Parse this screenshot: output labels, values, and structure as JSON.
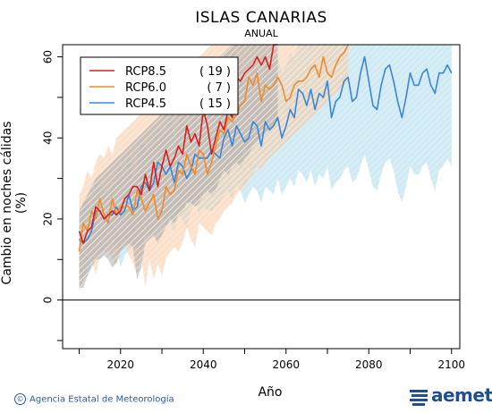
{
  "header": {
    "title": "ISLAS CANARIAS",
    "subtitle": "ANUAL"
  },
  "footer": {
    "credit": "Agencia Estatal de Meteorología",
    "logo_text": "aemet"
  },
  "chart_data": {
    "type": "line",
    "title": "ISLAS CANARIAS",
    "subtitle": "ANUAL",
    "xlabel": "Año",
    "ylabel": "Cambio en noches cálidas (%)",
    "xlim": [
      2006,
      2102
    ],
    "ylim": [
      -12,
      63
    ],
    "xticks": [
      2020,
      2040,
      2060,
      2080,
      2100
    ],
    "yticks": [
      0,
      20,
      40,
      60
    ],
    "reference_line": 0,
    "legend_position": "top-left",
    "series": [
      {
        "name": "RCP8.5",
        "count": "( 19 )",
        "color": "#d62020",
        "band_color": "#a8a8a8",
        "x": [
          2010,
          2011,
          2012,
          2013,
          2014,
          2015,
          2016,
          2017,
          2018,
          2019,
          2020,
          2021,
          2022,
          2023,
          2024,
          2025,
          2026,
          2027,
          2028,
          2029,
          2030,
          2031,
          2032,
          2033,
          2034,
          2035,
          2036,
          2037,
          2038,
          2039,
          2040,
          2041,
          2042,
          2043,
          2044,
          2045,
          2046,
          2047,
          2048,
          2049,
          2050,
          2051,
          2052,
          2053,
          2054,
          2055,
          2056,
          2057,
          2058
        ],
        "values": [
          17,
          14,
          17,
          18,
          23,
          22,
          20,
          21,
          22,
          21,
          22,
          25,
          26,
          28,
          28,
          26,
          31,
          27,
          34,
          28,
          33,
          37,
          33,
          35,
          38,
          36,
          43,
          39,
          41,
          38,
          47,
          43,
          36,
          40,
          44,
          42,
          47,
          45,
          55,
          54,
          56,
          57,
          58,
          60,
          58,
          60,
          57,
          63,
          64
        ],
        "upper": [
          22,
          24,
          26,
          28,
          30,
          31,
          32,
          33,
          34,
          35,
          36,
          37,
          38,
          39,
          40,
          41,
          42,
          43,
          44,
          45,
          46,
          47,
          48,
          49,
          50,
          51,
          52,
          53,
          54,
          55,
          56,
          57,
          58,
          59,
          60,
          61,
          62,
          63,
          63,
          63,
          63,
          63,
          63,
          63,
          63,
          63,
          63,
          63,
          63
        ],
        "lower": [
          3,
          3,
          6,
          8,
          10,
          10,
          11,
          10,
          8,
          9,
          12,
          13,
          14,
          13,
          5,
          8,
          14,
          15,
          16,
          14,
          16,
          18,
          20,
          19,
          21,
          22,
          24,
          24,
          23,
          24,
          26,
          27,
          26,
          27,
          30,
          32,
          31,
          33,
          34,
          33,
          35,
          36,
          38,
          39,
          40,
          41,
          42,
          43,
          44
        ]
      },
      {
        "name": "RCP6.0",
        "count": "(  7 )",
        "color": "#f08a2a",
        "band_color": "#f7c9a0",
        "x": [
          2010,
          2011,
          2012,
          2013,
          2014,
          2015,
          2016,
          2017,
          2018,
          2019,
          2020,
          2021,
          2022,
          2023,
          2024,
          2025,
          2026,
          2027,
          2028,
          2029,
          2030,
          2031,
          2032,
          2033,
          2034,
          2035,
          2036,
          2037,
          2038,
          2039,
          2040,
          2041,
          2042,
          2043,
          2044,
          2045,
          2046,
          2047,
          2048,
          2049,
          2050,
          2051,
          2052,
          2053,
          2054,
          2055,
          2056,
          2057,
          2058,
          2059,
          2060,
          2061,
          2062,
          2063,
          2064,
          2065,
          2066,
          2067,
          2068,
          2069,
          2070,
          2071,
          2072,
          2073,
          2074,
          2075
        ],
        "values": [
          12,
          19,
          17,
          22,
          20,
          25,
          21,
          19,
          25,
          21,
          23,
          23,
          23,
          21,
          27,
          25,
          22,
          24,
          26,
          20,
          22,
          28,
          26,
          27,
          32,
          31,
          36,
          33,
          31,
          37,
          36,
          31,
          34,
          38,
          42,
          41,
          45,
          44,
          46,
          48,
          49,
          55,
          53,
          56,
          49,
          53,
          52,
          53,
          55,
          53,
          49,
          50,
          53,
          54,
          54,
          55,
          57,
          58,
          55,
          60,
          56,
          55,
          58,
          60,
          61,
          63
        ],
        "upper": [
          26,
          28,
          32,
          30,
          34,
          36,
          35,
          38,
          36,
          40,
          41,
          42,
          43,
          44,
          45,
          46,
          47,
          48,
          49,
          50,
          51,
          52,
          53,
          54,
          55,
          56,
          57,
          58,
          59,
          60,
          61,
          62,
          63,
          63,
          63,
          63,
          63,
          63,
          63,
          63,
          63,
          63,
          63,
          63,
          63,
          63,
          63,
          63,
          63,
          63,
          63,
          63,
          63,
          63,
          63,
          63,
          63,
          63,
          63,
          63,
          63,
          63,
          63,
          63,
          63,
          63
        ],
        "lower": [
          2,
          5,
          8,
          10,
          6,
          11,
          12,
          12,
          10,
          9,
          12,
          14,
          11,
          9,
          6,
          11,
          3,
          10,
          5,
          9,
          6,
          10,
          12,
          13,
          12,
          14,
          18,
          15,
          13,
          19,
          18,
          17,
          16,
          19,
          20,
          22,
          23,
          24,
          26,
          27,
          28,
          30,
          31,
          33,
          32,
          34,
          35,
          36,
          37,
          38,
          39,
          40,
          41,
          42,
          43,
          44,
          45,
          46,
          47,
          48,
          49,
          50,
          51,
          52,
          53,
          54
        ]
      },
      {
        "name": "RCP4.5",
        "count": "( 15 )",
        "color": "#3a86d8",
        "band_color": "#a9d9ea",
        "x": [
          2010,
          2011,
          2012,
          2013,
          2014,
          2015,
          2016,
          2017,
          2018,
          2019,
          2020,
          2021,
          2022,
          2023,
          2024,
          2025,
          2026,
          2027,
          2028,
          2029,
          2030,
          2031,
          2032,
          2033,
          2034,
          2035,
          2036,
          2037,
          2038,
          2039,
          2040,
          2041,
          2042,
          2043,
          2044,
          2045,
          2046,
          2047,
          2048,
          2049,
          2050,
          2051,
          2052,
          2053,
          2054,
          2055,
          2056,
          2057,
          2058,
          2059,
          2060,
          2061,
          2062,
          2063,
          2064,
          2065,
          2066,
          2067,
          2068,
          2069,
          2070,
          2071,
          2072,
          2073,
          2074,
          2075,
          2076,
          2077,
          2078,
          2079,
          2080,
          2081,
          2082,
          2083,
          2084,
          2085,
          2086,
          2087,
          2088,
          2089,
          2090,
          2091,
          2092,
          2093,
          2094,
          2095,
          2096,
          2097,
          2098,
          2099,
          2100
        ],
        "values": [
          15,
          14,
          15,
          17,
          22,
          22,
          20,
          21,
          21,
          23,
          21,
          22,
          26,
          22,
          23,
          28,
          29,
          27,
          29,
          34,
          33,
          31,
          33,
          29,
          34,
          33,
          30,
          32,
          36,
          35,
          35,
          35,
          37,
          36,
          35,
          40,
          42,
          38,
          43,
          41,
          39,
          40,
          44,
          43,
          38,
          44,
          42,
          43,
          45,
          40,
          43,
          47,
          45,
          52,
          51,
          48,
          52,
          47,
          51,
          50,
          54,
          45,
          49,
          50,
          54,
          55,
          49,
          50,
          56,
          60,
          54,
          48,
          47,
          53,
          57,
          58,
          54,
          49,
          45,
          50,
          56,
          53,
          53,
          56,
          57,
          53,
          51,
          56,
          56,
          58,
          56
        ],
        "upper": [
          19,
          24,
          25,
          23,
          30,
          28,
          27,
          26,
          28,
          31,
          33,
          30,
          37,
          29,
          33,
          40,
          37,
          38,
          39,
          43,
          41,
          42,
          45,
          40,
          44,
          45,
          43,
          44,
          48,
          46,
          48,
          49,
          50,
          49,
          50,
          52,
          55,
          51,
          56,
          55,
          53,
          54,
          58,
          57,
          53,
          58,
          58,
          59,
          60,
          56,
          58,
          61,
          60,
          63,
          63,
          63,
          63,
          63,
          63,
          63,
          63,
          63,
          63,
          63,
          63,
          63,
          63,
          63,
          63,
          63,
          63,
          63,
          63,
          63,
          63,
          63,
          63,
          63,
          63,
          63,
          63,
          63,
          63,
          63,
          63,
          63,
          63,
          63,
          63,
          63,
          63
        ],
        "lower": [
          4,
          5,
          6,
          9,
          12,
          11,
          12,
          13,
          14,
          13,
          8,
          11,
          12,
          14,
          13,
          13,
          16,
          15,
          16,
          18,
          20,
          18,
          19,
          17,
          21,
          20,
          18,
          22,
          24,
          21,
          23,
          22,
          22,
          23,
          24,
          26,
          27,
          25,
          28,
          27,
          24,
          26,
          28,
          27,
          24,
          28,
          27,
          26,
          30,
          26,
          28,
          30,
          28,
          32,
          31,
          29,
          32,
          28,
          31,
          30,
          33,
          27,
          29,
          30,
          32,
          33,
          29,
          30,
          33,
          36,
          32,
          28,
          27,
          31,
          34,
          35,
          32,
          27,
          24,
          28,
          33,
          31,
          31,
          33,
          34,
          30,
          27,
          32,
          33,
          35,
          33
        ]
      }
    ]
  }
}
